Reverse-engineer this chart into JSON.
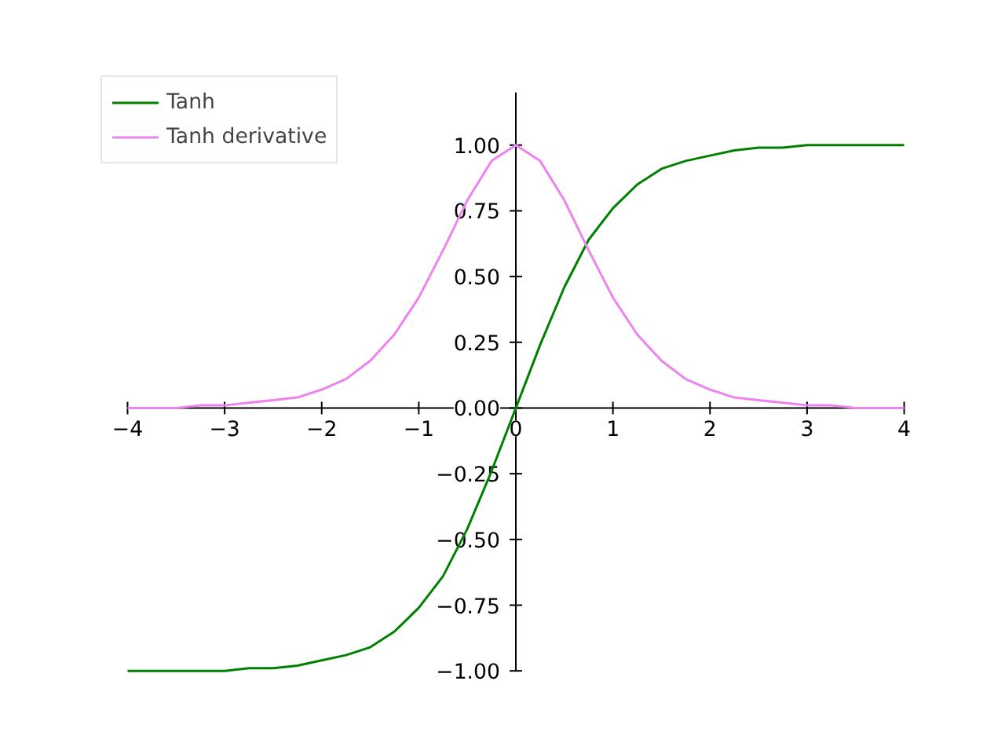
{
  "chart_data": {
    "type": "line",
    "x": [
      -4,
      -3.75,
      -3.5,
      -3.25,
      -3,
      -2.75,
      -2.5,
      -2.25,
      -2,
      -1.75,
      -1.5,
      -1.25,
      -1,
      -0.75,
      -0.5,
      -0.25,
      0,
      0.25,
      0.5,
      0.75,
      1,
      1.25,
      1.5,
      1.75,
      2,
      2.25,
      2.5,
      2.75,
      3,
      3.25,
      3.5,
      3.75,
      4
    ],
    "series": [
      {
        "name": "Tanh",
        "color": "#008000",
        "values": [
          -1.0,
          -1.0,
          -1.0,
          -1.0,
          -1.0,
          -0.99,
          -0.99,
          -0.98,
          -0.96,
          -0.94,
          -0.91,
          -0.85,
          -0.76,
          -0.64,
          -0.46,
          -0.24,
          0,
          0.24,
          0.46,
          0.64,
          0.76,
          0.85,
          0.91,
          0.94,
          0.96,
          0.98,
          0.99,
          0.99,
          1.0,
          1.0,
          1.0,
          1.0,
          1.0
        ]
      },
      {
        "name": "Tanh derivative",
        "color": "#ee82ee",
        "values": [
          0,
          0,
          0,
          0.01,
          0.01,
          0.02,
          0.03,
          0.04,
          0.07,
          0.11,
          0.18,
          0.28,
          0.42,
          0.6,
          0.79,
          0.94,
          1.0,
          0.94,
          0.79,
          0.6,
          0.42,
          0.28,
          0.18,
          0.11,
          0.07,
          0.04,
          0.03,
          0.02,
          0.01,
          0.01,
          0,
          0,
          0
        ]
      }
    ],
    "xlim": [
      -4,
      4
    ],
    "ylim": [
      -1.0,
      1.2
    ],
    "xticks": [
      {
        "value": -4,
        "label": "−4"
      },
      {
        "value": -3,
        "label": "−3"
      },
      {
        "value": -2,
        "label": "−2"
      },
      {
        "value": -1,
        "label": "−1"
      },
      0,
      1,
      2,
      3,
      4
    ],
    "yticks": [
      {
        "value": -1,
        "label": "−1.00"
      },
      {
        "value": -0.75,
        "label": "−0.75"
      },
      {
        "value": -0.5,
        "label": "−0.50"
      },
      {
        "value": -0.25,
        "label": "−0.25"
      },
      {
        "value": 0,
        "label": "0.00"
      },
      {
        "value": 0.25,
        "label": "0.25"
      },
      {
        "value": 0.5,
        "label": "0.50"
      },
      {
        "value": 0.75,
        "label": "0.75"
      },
      {
        "value": 1,
        "label": "1.00"
      }
    ],
    "grid": false,
    "legend": "top left",
    "marker": "none",
    "line_style": "solid"
  }
}
